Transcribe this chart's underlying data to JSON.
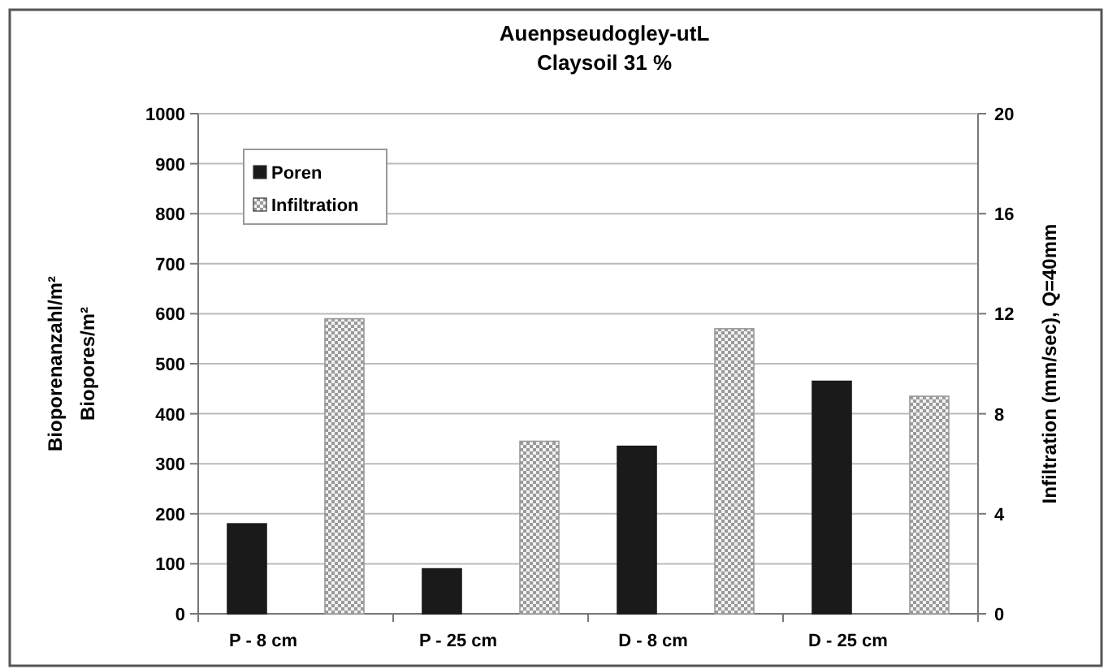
{
  "chart_data": {
    "type": "bar",
    "title": "Auenpseudogley-utL\nClaysoil 31 %",
    "ylabel": "Bioporenanzahl/m²\nBiopores/m²",
    "y2label": "Infiltration (mm/sec), Q=40mm",
    "categories": [
      "P - 8 cm",
      "P - 25 cm",
      "D - 8 cm",
      "D - 25 cm"
    ],
    "series": [
      {
        "name": "Poren",
        "color": "#1a1a1a",
        "values": [
          180,
          90,
          335,
          465
        ]
      },
      {
        "name": "Infiltration",
        "color": "#9a9a9a",
        "axis": "y2",
        "values": [
          11.8,
          6.9,
          11.4,
          8.7
        ]
      }
    ],
    "ylim": [
      0,
      1000
    ],
    "yticks": [
      0,
      100,
      200,
      300,
      400,
      500,
      600,
      700,
      800,
      900,
      1000
    ],
    "y2lim": [
      0,
      20
    ],
    "y2ticks": [
      0,
      4,
      8,
      12,
      16,
      20
    ],
    "grid": "y",
    "legend": "top left"
  }
}
